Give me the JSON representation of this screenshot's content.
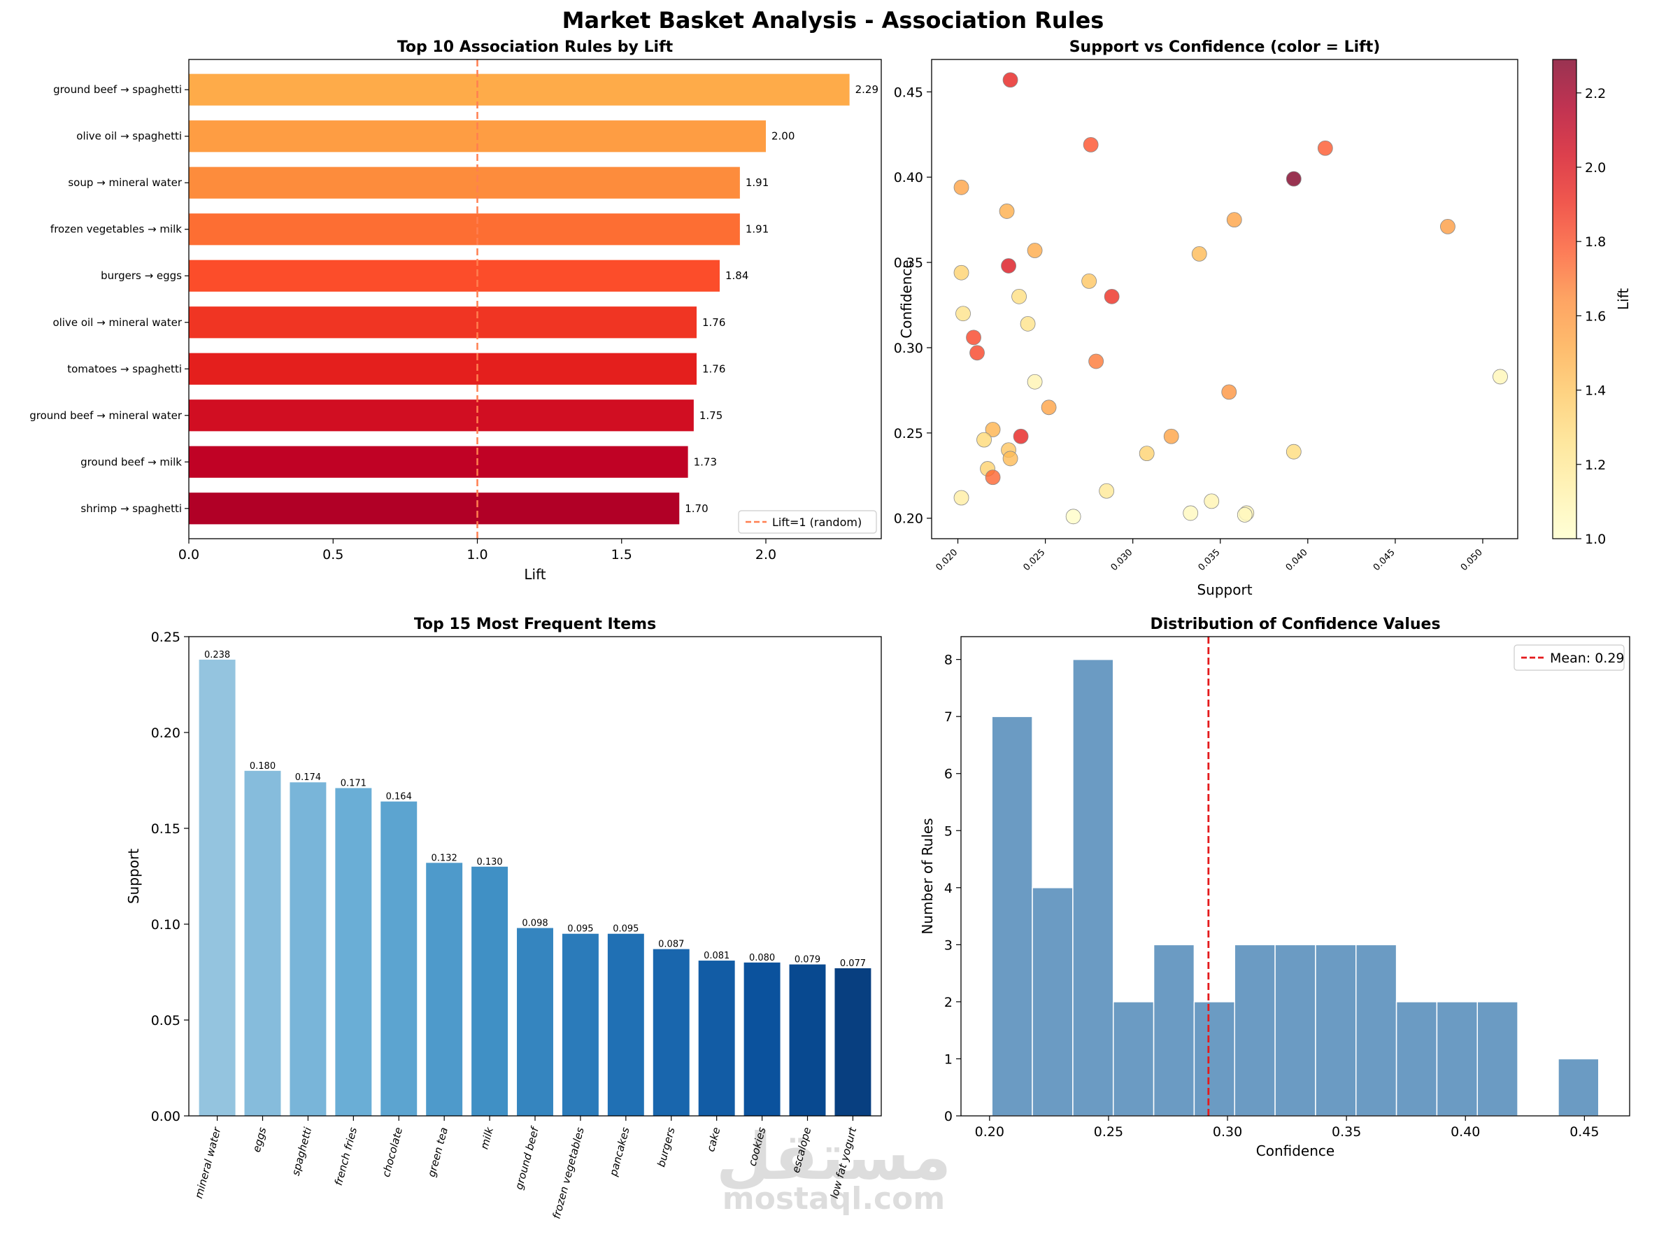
{
  "suptitle": "Market Basket Analysis - Association Rules",
  "watermark": {
    "logo": "مستقل",
    "text": "mostaql.com"
  },
  "chart_data": [
    {
      "type": "bar",
      "orientation": "horizontal",
      "title": "Top 10 Association Rules by Lift",
      "xlabel": "Lift",
      "ylabel": "",
      "xlim": [
        0,
        2.4
      ],
      "xticks": [
        0.0,
        0.5,
        1.0,
        1.5,
        2.0
      ],
      "categories": [
        "ground beef → spaghetti",
        "olive oil → spaghetti",
        "soup → mineral water",
        "frozen vegetables → milk",
        "burgers → eggs",
        "olive oil → mineral water",
        "tomatoes → spaghetti",
        "ground beef → mineral water",
        "ground beef → milk",
        "shrimp → spaghetti"
      ],
      "values": [
        2.29,
        2.0,
        1.91,
        1.91,
        1.84,
        1.76,
        1.76,
        1.75,
        1.73,
        1.7
      ],
      "value_labels": [
        "2.29",
        "2.00",
        "1.91",
        "1.91",
        "1.84",
        "1.76",
        "1.76",
        "1.75",
        "1.73",
        "1.70"
      ],
      "colors": [
        "#feab49",
        "#fe9d43",
        "#fd8c3c",
        "#fd6e33",
        "#fc4d2a",
        "#f03523",
        "#e41f1d",
        "#d10e22",
        "#c00225",
        "#b10026"
      ],
      "reference_line": {
        "value": 1.0,
        "label": "Lift=1 (random)",
        "color": "#ff7f50"
      },
      "legend_position": "lower right"
    },
    {
      "type": "scatter",
      "title": "Support vs Confidence (color = Lift)",
      "xlabel": "Support",
      "ylabel": "Confidence",
      "xlim": [
        0.0185,
        0.052
      ],
      "ylim": [
        0.188,
        0.469
      ],
      "xticks": [
        "0.020",
        "0.025",
        "0.030",
        "0.035",
        "0.040",
        "0.045",
        "0.050"
      ],
      "yticks": [
        "0.20",
        "0.25",
        "0.30",
        "0.35",
        "0.40",
        "0.45"
      ],
      "colorbar": {
        "label": "Lift",
        "range": [
          1.0,
          2.29
        ],
        "ticks": [
          "1.0",
          "1.2",
          "1.4",
          "1.6",
          "1.8",
          "2.0",
          "2.2"
        ]
      },
      "points": [
        {
          "x": 0.023,
          "y": 0.457,
          "lift": 1.95
        },
        {
          "x": 0.0276,
          "y": 0.419,
          "lift": 1.8
        },
        {
          "x": 0.041,
          "y": 0.417,
          "lift": 1.78
        },
        {
          "x": 0.0392,
          "y": 0.399,
          "lift": 2.29
        },
        {
          "x": 0.0202,
          "y": 0.394,
          "lift": 1.55
        },
        {
          "x": 0.0228,
          "y": 0.38,
          "lift": 1.5
        },
        {
          "x": 0.0358,
          "y": 0.375,
          "lift": 1.55
        },
        {
          "x": 0.048,
          "y": 0.371,
          "lift": 1.58
        },
        {
          "x": 0.0244,
          "y": 0.357,
          "lift": 1.52
        },
        {
          "x": 0.0338,
          "y": 0.355,
          "lift": 1.45
        },
        {
          "x": 0.0229,
          "y": 0.348,
          "lift": 2.0
        },
        {
          "x": 0.0202,
          "y": 0.344,
          "lift": 1.35
        },
        {
          "x": 0.0275,
          "y": 0.339,
          "lift": 1.4
        },
        {
          "x": 0.0235,
          "y": 0.33,
          "lift": 1.28
        },
        {
          "x": 0.0288,
          "y": 0.33,
          "lift": 1.91
        },
        {
          "x": 0.0203,
          "y": 0.32,
          "lift": 1.25
        },
        {
          "x": 0.024,
          "y": 0.314,
          "lift": 1.25
        },
        {
          "x": 0.0209,
          "y": 0.306,
          "lift": 1.84
        },
        {
          "x": 0.0211,
          "y": 0.297,
          "lift": 1.84
        },
        {
          "x": 0.0279,
          "y": 0.292,
          "lift": 1.7
        },
        {
          "x": 0.0244,
          "y": 0.28,
          "lift": 1.1
        },
        {
          "x": 0.0355,
          "y": 0.274,
          "lift": 1.62
        },
        {
          "x": 0.051,
          "y": 0.283,
          "lift": 1.08
        },
        {
          "x": 0.0252,
          "y": 0.265,
          "lift": 1.55
        },
        {
          "x": 0.022,
          "y": 0.252,
          "lift": 1.48
        },
        {
          "x": 0.0236,
          "y": 0.248,
          "lift": 1.95
        },
        {
          "x": 0.0322,
          "y": 0.248,
          "lift": 1.55
        },
        {
          "x": 0.0215,
          "y": 0.246,
          "lift": 1.32
        },
        {
          "x": 0.0229,
          "y": 0.24,
          "lift": 1.4
        },
        {
          "x": 0.0392,
          "y": 0.239,
          "lift": 1.3
        },
        {
          "x": 0.0308,
          "y": 0.238,
          "lift": 1.35
        },
        {
          "x": 0.023,
          "y": 0.235,
          "lift": 1.45
        },
        {
          "x": 0.0217,
          "y": 0.229,
          "lift": 1.35
        },
        {
          "x": 0.022,
          "y": 0.224,
          "lift": 1.75
        },
        {
          "x": 0.0285,
          "y": 0.216,
          "lift": 1.2
        },
        {
          "x": 0.0202,
          "y": 0.212,
          "lift": 1.15
        },
        {
          "x": 0.0345,
          "y": 0.21,
          "lift": 1.1
        },
        {
          "x": 0.0333,
          "y": 0.203,
          "lift": 1.05
        },
        {
          "x": 0.0365,
          "y": 0.203,
          "lift": 1.1
        },
        {
          "x": 0.0266,
          "y": 0.201,
          "lift": 1.02
        },
        {
          "x": 0.0364,
          "y": 0.202,
          "lift": 1.05
        }
      ]
    },
    {
      "type": "bar",
      "title": "Top 15 Most Frequent Items",
      "xlabel": "",
      "ylabel": "Support",
      "ylim": [
        0,
        0.25
      ],
      "yticks": [
        "0.00",
        "0.05",
        "0.10",
        "0.15",
        "0.20",
        "0.25"
      ],
      "categories": [
        "mineral water",
        "eggs",
        "spaghetti",
        "french fries",
        "chocolate",
        "green tea",
        "milk",
        "ground beef",
        "frozen vegetables",
        "pancakes",
        "burgers",
        "cake",
        "cookies",
        "escalope",
        "low fat yogurt"
      ],
      "values": [
        0.238,
        0.18,
        0.174,
        0.171,
        0.164,
        0.132,
        0.13,
        0.098,
        0.095,
        0.095,
        0.087,
        0.081,
        0.08,
        0.079,
        0.077
      ],
      "value_labels": [
        "0.238",
        "0.180",
        "0.174",
        "0.171",
        "0.164",
        "0.132",
        "0.130",
        "0.098",
        "0.095",
        "0.095",
        "0.087",
        "0.081",
        "0.080",
        "0.079",
        "0.077"
      ],
      "colors": [
        "#94c4df",
        "#86bcdc",
        "#79b5d9",
        "#6aaed6",
        "#5ca4d0",
        "#4e9acb",
        "#4090c5",
        "#3585bf",
        "#2b7bba",
        "#2070b4",
        "#1966ad",
        "#125ca5",
        "#0b529d",
        "#084990",
        "#083f80"
      ]
    },
    {
      "type": "histogram",
      "title": "Distribution of Confidence Values",
      "xlabel": "Confidence",
      "ylabel": "Number of Rules",
      "xlim": [
        0.188,
        0.469
      ],
      "ylim": [
        0,
        8.4
      ],
      "xticks": [
        "0.20",
        "0.25",
        "0.30",
        "0.35",
        "0.40",
        "0.45"
      ],
      "yticks": [
        "0",
        "1",
        "2",
        "3",
        "4",
        "5",
        "6",
        "7",
        "8"
      ],
      "bins": [
        0.201,
        0.218,
        0.235,
        0.252,
        0.269,
        0.286,
        0.303,
        0.32,
        0.337,
        0.354,
        0.371,
        0.388,
        0.405,
        0.422,
        0.439,
        0.456
      ],
      "counts": [
        7,
        4,
        8,
        2,
        3,
        2,
        3,
        3,
        3,
        3,
        2,
        2,
        2,
        0,
        1
      ],
      "bar_color": "#4682b4",
      "reference_line": {
        "value": 0.292,
        "label": "Mean: 0.29",
        "color": "#e41a1c"
      },
      "legend_position": "upper right"
    }
  ]
}
